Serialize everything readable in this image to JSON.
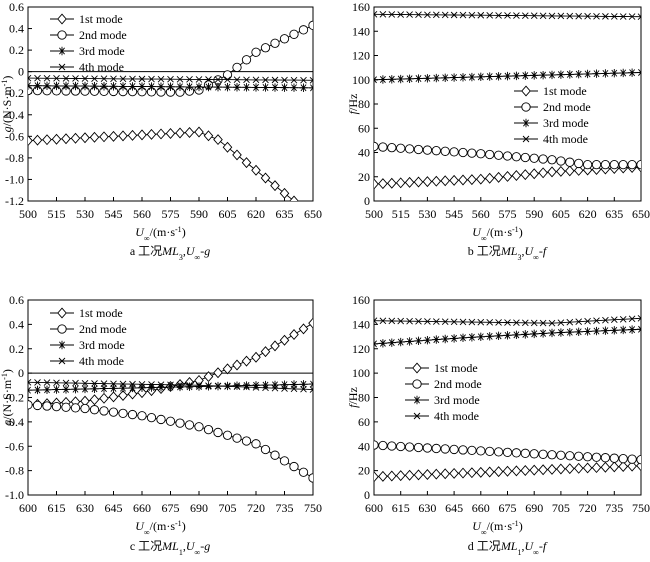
{
  "figure": {
    "captions": [
      "a 工况ML3,U∞-g",
      "b 工况ML3,U∞-f",
      "c 工况ML1,U∞-g",
      "d 工况ML1,U∞-f"
    ]
  },
  "chart_data": [
    {
      "type": "line",
      "panel": "a",
      "xlabel": "U∞/(m·s⁻¹)",
      "ylabel": "g/(N·S·m⁻¹)",
      "xlim": [
        500,
        650
      ],
      "ylim": [
        -1.2,
        0.6
      ],
      "xticks": [
        500,
        515,
        530,
        545,
        560,
        575,
        590,
        605,
        620,
        635,
        650
      ],
      "yticks": [
        0.6,
        0.4,
        0.2,
        0.0,
        -0.2,
        -0.4,
        -0.6,
        -0.8,
        -1.0,
        -1.2
      ],
      "ytick_labels": [
        "0.6",
        "0.4",
        "0.2",
        "0",
        "-0.2",
        "-0.4",
        "-0.6",
        "-0.8",
        "-1.0",
        "-1.2"
      ],
      "zero_line": true,
      "legend_position": "top-left",
      "series": [
        {
          "name": "1st mode",
          "marker": "diamond",
          "points": [
            [
              500,
              -0.64
            ],
            [
              590,
              -0.56
            ],
            [
              600,
              -0.63
            ],
            [
              640,
              -1.2
            ]
          ]
        },
        {
          "name": "2nd mode",
          "marker": "circle",
          "points": [
            [
              500,
              -0.175
            ],
            [
              580,
              -0.19
            ],
            [
              590,
              -0.17
            ],
            [
              605,
              -0.03
            ],
            [
              620,
              0.18
            ],
            [
              650,
              0.43
            ]
          ]
        },
        {
          "name": "3rd mode",
          "marker": "star",
          "points": [
            [
              500,
              -0.13
            ],
            [
              650,
              -0.15
            ]
          ]
        },
        {
          "name": "4th mode",
          "marker": "x",
          "points": [
            [
              500,
              -0.06
            ],
            [
              650,
              -0.08
            ]
          ]
        }
      ]
    },
    {
      "type": "line",
      "panel": "b",
      "xlabel": "U∞/(m·s⁻¹)",
      "ylabel": "f/Hz",
      "xlim": [
        500,
        650
      ],
      "ylim": [
        0,
        160
      ],
      "xticks": [
        500,
        515,
        530,
        545,
        560,
        575,
        590,
        605,
        620,
        635,
        650
      ],
      "yticks": [
        160,
        140,
        120,
        100,
        80,
        60,
        40,
        20,
        0
      ],
      "ytick_labels": [
        "160",
        "140",
        "120",
        "100",
        "80",
        "60",
        "40",
        "20",
        "0"
      ],
      "zero_line": false,
      "legend_position": "center-right",
      "series": [
        {
          "name": "1st mode",
          "marker": "diamond",
          "points": [
            [
              500,
              14
            ],
            [
              560,
              18
            ],
            [
              600,
              24
            ],
            [
              650,
              28
            ]
          ]
        },
        {
          "name": "2nd mode",
          "marker": "circle",
          "points": [
            [
              500,
              45
            ],
            [
              560,
              39
            ],
            [
              600,
              34
            ],
            [
              620,
              30
            ],
            [
              650,
              30
            ]
          ]
        },
        {
          "name": "3rd mode",
          "marker": "star",
          "points": [
            [
              500,
              100
            ],
            [
              650,
              106
            ]
          ]
        },
        {
          "name": "4th mode",
          "marker": "x",
          "points": [
            [
              500,
              154
            ],
            [
              650,
              152
            ]
          ]
        }
      ]
    },
    {
      "type": "line",
      "panel": "c",
      "xlabel": "U∞/(m·s⁻¹)",
      "ylabel": "g/(N·S·m⁻¹)",
      "xlim": [
        600,
        750
      ],
      "ylim": [
        -1.0,
        0.6
      ],
      "xticks": [
        600,
        615,
        630,
        645,
        660,
        675,
        690,
        705,
        720,
        735,
        750
      ],
      "yticks": [
        0.6,
        0.4,
        0.2,
        0.0,
        -0.2,
        -0.4,
        -0.6,
        -0.8,
        -1.0
      ],
      "ytick_labels": [
        "0.6",
        "0.4",
        "0.2",
        "0",
        "-0.2",
        "-0.4",
        "-0.6",
        "-0.8",
        "-1.0"
      ],
      "zero_line": true,
      "legend_position": "top-left",
      "series": [
        {
          "name": "1st mode",
          "marker": "diamond",
          "points": [
            [
              600,
              -0.26
            ],
            [
              630,
              -0.23
            ],
            [
              660,
              -0.16
            ],
            [
              690,
              -0.06
            ],
            [
              720,
              0.13
            ],
            [
              750,
              0.41
            ]
          ]
        },
        {
          "name": "2nd mode",
          "marker": "circle",
          "points": [
            [
              600,
              -0.26
            ],
            [
              630,
              -0.29
            ],
            [
              660,
              -0.35
            ],
            [
              690,
              -0.44
            ],
            [
              720,
              -0.58
            ],
            [
              750,
              -0.86
            ]
          ]
        },
        {
          "name": "3rd mode",
          "marker": "star",
          "points": [
            [
              600,
              -0.14
            ],
            [
              690,
              -0.11
            ],
            [
              750,
              -0.09
            ]
          ]
        },
        {
          "name": "4th mode",
          "marker": "x",
          "points": [
            [
              600,
              -0.075
            ],
            [
              690,
              -0.1
            ],
            [
              750,
              -0.135
            ]
          ]
        }
      ]
    },
    {
      "type": "line",
      "panel": "d",
      "xlabel": "U∞/(m·s⁻¹)",
      "ylabel": "f/Hz",
      "xlim": [
        600,
        750
      ],
      "ylim": [
        0,
        160
      ],
      "xticks": [
        600,
        615,
        630,
        645,
        660,
        675,
        690,
        705,
        720,
        735,
        750
      ],
      "yticks": [
        160,
        140,
        120,
        100,
        80,
        60,
        40,
        20,
        0
      ],
      "ytick_labels": [
        "160",
        "140",
        "120",
        "100",
        "80",
        "60",
        "40",
        "20",
        "0"
      ],
      "zero_line": false,
      "legend_position": "center",
      "series": [
        {
          "name": "1st mode",
          "marker": "diamond",
          "points": [
            [
              600,
              15
            ],
            [
              650,
              18
            ],
            [
              700,
              21
            ],
            [
              750,
              24
            ]
          ]
        },
        {
          "name": "2nd mode",
          "marker": "circle",
          "points": [
            [
              600,
              41
            ],
            [
              650,
              37
            ],
            [
              700,
              33
            ],
            [
              750,
              29
            ]
          ]
        },
        {
          "name": "3rd mode",
          "marker": "star",
          "points": [
            [
              600,
              124
            ],
            [
              650,
              129
            ],
            [
              700,
              133
            ],
            [
              750,
              136
            ]
          ]
        },
        {
          "name": "4th mode",
          "marker": "x",
          "points": [
            [
              600,
              143
            ],
            [
              700,
              141
            ],
            [
              750,
              145
            ]
          ]
        }
      ]
    }
  ]
}
